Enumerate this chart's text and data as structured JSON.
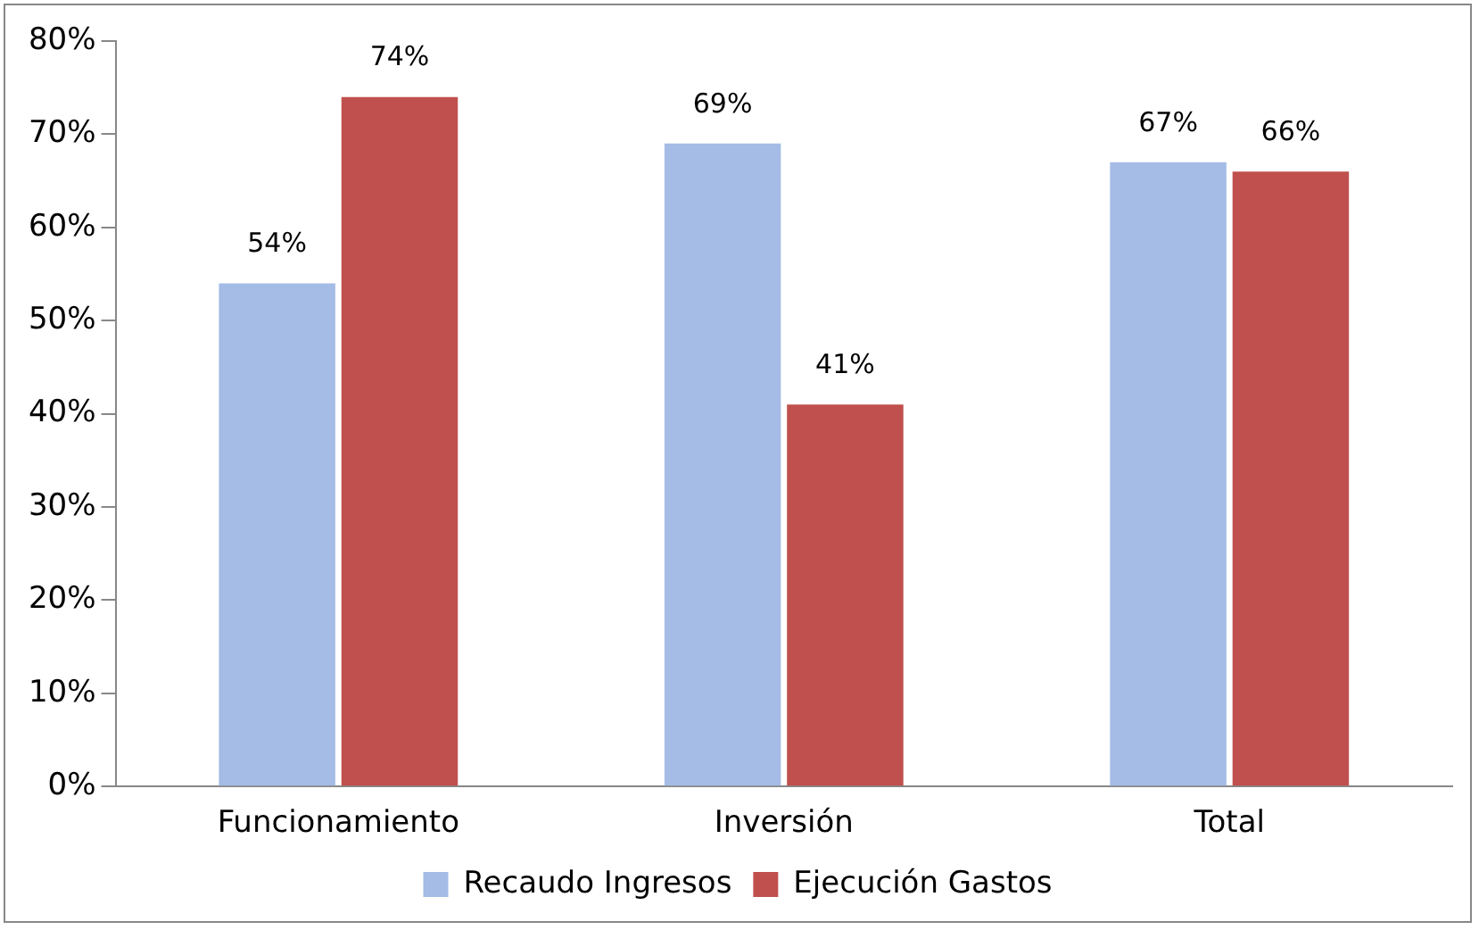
{
  "chart_data": {
    "type": "bar",
    "categories": [
      "Funcionamiento",
      "Inversión",
      "Total"
    ],
    "series": [
      {
        "name": "Recaudo Ingresos",
        "color": "#a4bce6",
        "values": [
          54,
          69,
          67
        ],
        "value_labels": [
          "54%",
          "69%",
          "67%"
        ]
      },
      {
        "name": "Ejecución Gastos",
        "color": "#c0504d",
        "values": [
          74,
          41,
          66
        ],
        "value_labels": [
          "74%",
          "41%",
          "66%"
        ]
      }
    ],
    "ylim": [
      0,
      80
    ],
    "yticks": [
      {
        "value": 0,
        "label": "0%"
      },
      {
        "value": 10,
        "label": "10%"
      },
      {
        "value": 20,
        "label": "20%"
      },
      {
        "value": 30,
        "label": "30%"
      },
      {
        "value": 40,
        "label": "40%"
      },
      {
        "value": 50,
        "label": "50%"
      },
      {
        "value": 60,
        "label": "60%"
      },
      {
        "value": 70,
        "label": "70%"
      },
      {
        "value": 80,
        "label": "80%"
      }
    ],
    "grid": false,
    "legend": "bottom"
  }
}
